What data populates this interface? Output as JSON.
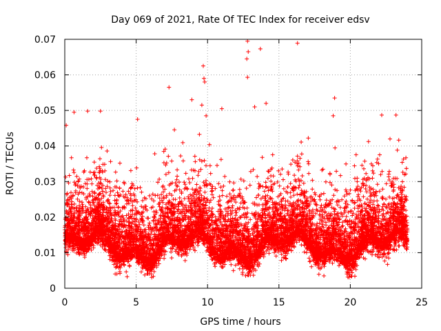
{
  "chart_data": {
    "type": "scatter",
    "title": "Day 069 of 2021, Rate Of TEC Index for receiver edsv",
    "xlabel": "GPS time / hours",
    "ylabel": "ROTI / TECUs",
    "xlim": [
      0,
      25
    ],
    "ylim": [
      0,
      0.07
    ],
    "x_ticks": [
      0,
      5,
      10,
      15,
      20,
      25
    ],
    "x_tick_labels": [
      "0",
      "5",
      "10",
      "15",
      "20",
      "25"
    ],
    "y_ticks": [
      0,
      0.01,
      0.02,
      0.03,
      0.04,
      0.05,
      0.06,
      0.07
    ],
    "y_tick_labels": [
      "0",
      "0.01",
      "0.02",
      "0.03",
      "0.04",
      "0.05",
      "0.06",
      "0.07"
    ],
    "grid": true,
    "marker": "plus",
    "marker_color": "#ff0000",
    "series": [
      {
        "name": "ROTI",
        "x_range": [
          0,
          24
        ],
        "typical_band": [
          0.005,
          0.03
        ],
        "outliers": [
          {
            "x": 12.8,
            "y": 0.0695
          },
          {
            "x": 12.85,
            "y": 0.0665
          },
          {
            "x": 12.75,
            "y": 0.0645
          },
          {
            "x": 13.7,
            "y": 0.0673
          },
          {
            "x": 16.3,
            "y": 0.0689
          },
          {
            "x": 9.7,
            "y": 0.0625
          },
          {
            "x": 9.75,
            "y": 0.059
          },
          {
            "x": 9.8,
            "y": 0.058
          },
          {
            "x": 12.8,
            "y": 0.0593
          },
          {
            "x": 7.3,
            "y": 0.0565
          },
          {
            "x": 18.9,
            "y": 0.0535
          },
          {
            "x": 8.9,
            "y": 0.053
          },
          {
            "x": 13.3,
            "y": 0.051
          },
          {
            "x": 14.1,
            "y": 0.052
          },
          {
            "x": 11.0,
            "y": 0.0505
          },
          {
            "x": 9.6,
            "y": 0.0515
          },
          {
            "x": 0.65,
            "y": 0.0495
          },
          {
            "x": 1.6,
            "y": 0.0498
          },
          {
            "x": 2.5,
            "y": 0.0498
          },
          {
            "x": 9.9,
            "y": 0.0485
          },
          {
            "x": 18.8,
            "y": 0.0485
          },
          {
            "x": 22.2,
            "y": 0.0487
          },
          {
            "x": 23.2,
            "y": 0.0487
          },
          {
            "x": 5.1,
            "y": 0.0475
          },
          {
            "x": 0.1,
            "y": 0.0458
          }
        ]
      }
    ]
  }
}
